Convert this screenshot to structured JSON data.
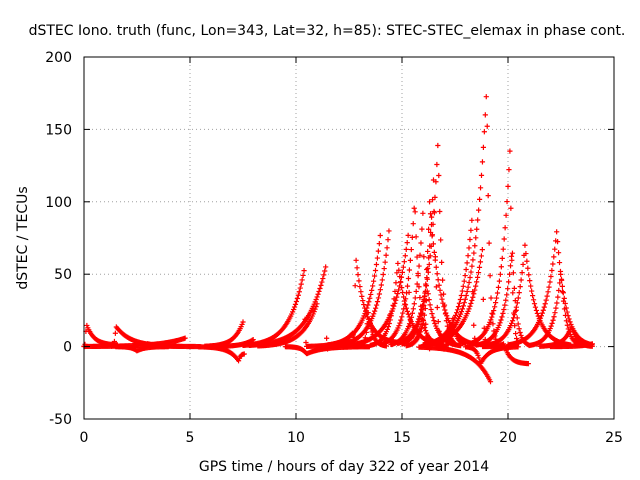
{
  "chart_data": {
    "type": "scatter",
    "title": "dSTEC Iono. truth (func, Lon=343, Lat=32, h=85): STEC-STEC_elemax in phase cont.",
    "xlabel": "GPS time / hours of day 322 of year 2014",
    "ylabel": "dSTEC  / TECUs",
    "xlim": [
      0,
      25
    ],
    "ylim": [
      -50,
      200
    ],
    "xticks": [
      0,
      5,
      10,
      15,
      20,
      25
    ],
    "yticks": [
      -50,
      0,
      50,
      100,
      150,
      200
    ],
    "grid": true,
    "legend": "none",
    "marker": "+",
    "color": "#ff0000",
    "arcs": [
      {
        "start": 0.0,
        "end": 1.6,
        "apex": 0.1,
        "peak": 16,
        "endval": 1
      },
      {
        "start": 0.0,
        "end": 4.8,
        "apex": 4.8,
        "peak": 6,
        "endval": 0
      },
      {
        "start": 1.3,
        "end": 4.5,
        "apex": 1.5,
        "peak": 14,
        "endval": 0
      },
      {
        "start": 1.5,
        "end": 4.0,
        "apex": 2.5,
        "peak": -3,
        "endval": 0
      },
      {
        "start": 3.0,
        "end": 5.5,
        "apex": 3.0,
        "peak": 2,
        "endval": 0
      },
      {
        "start": 5.4,
        "end": 7.6,
        "apex": 7.3,
        "peak": -10,
        "endval": -5
      },
      {
        "start": 5.7,
        "end": 7.5,
        "apex": 7.5,
        "peak": 17,
        "endval": 0
      },
      {
        "start": 6.0,
        "end": 8.0,
        "apex": 8.0,
        "peak": 5,
        "endval": 2
      },
      {
        "start": 7.5,
        "end": 10.5,
        "apex": 10.4,
        "peak": 54,
        "endval": 0
      },
      {
        "start": 7.8,
        "end": 11.5,
        "apex": 11.4,
        "peak": 55,
        "endval": -3
      },
      {
        "start": 8.2,
        "end": 11.0,
        "apex": 11.0,
        "peak": 30,
        "endval": 0
      },
      {
        "start": 9.5,
        "end": 13.5,
        "apex": 10.5,
        "peak": -5,
        "endval": 0
      },
      {
        "start": 10.5,
        "end": 12.8,
        "apex": 12.7,
        "peak": 10,
        "endval": 0
      },
      {
        "start": 11.5,
        "end": 14.0,
        "apex": 14.0,
        "peak": 80,
        "endval": 0
      },
      {
        "start": 12.0,
        "end": 14.5,
        "apex": 14.4,
        "peak": 82,
        "endval": -2
      },
      {
        "start": 12.7,
        "end": 14.8,
        "apex": 12.8,
        "peak": 64,
        "endval": 2
      },
      {
        "start": 13.0,
        "end": 14.3,
        "apex": 13.4,
        "peak": 24,
        "endval": 0
      },
      {
        "start": 12.5,
        "end": 15.5,
        "apex": 15.3,
        "peak": 78,
        "endval": 0
      },
      {
        "start": 13.5,
        "end": 17.0,
        "apex": 14.8,
        "peak": 58,
        "endval": 0
      },
      {
        "start": 14.0,
        "end": 16.5,
        "apex": 15.6,
        "peak": 102,
        "endval": 2
      },
      {
        "start": 14.5,
        "end": 16.3,
        "apex": 16.0,
        "peak": 96,
        "endval": -3
      },
      {
        "start": 14.8,
        "end": 17.5,
        "apex": 16.7,
        "peak": 142,
        "endval": 0
      },
      {
        "start": 15.0,
        "end": 17.0,
        "apex": 16.5,
        "peak": 120,
        "endval": -4
      },
      {
        "start": 15.2,
        "end": 17.8,
        "apex": 16.2,
        "peak": 40,
        "endval": 0
      },
      {
        "start": 15.4,
        "end": 18.5,
        "apex": 16.3,
        "peak": 100,
        "endval": 0
      },
      {
        "start": 15.8,
        "end": 19.2,
        "apex": 19.2,
        "peak": -25,
        "endval": -25
      },
      {
        "start": 16.0,
        "end": 18.5,
        "apex": 18.3,
        "peak": 88,
        "endval": 0
      },
      {
        "start": 16.5,
        "end": 19.5,
        "apex": 19.0,
        "peak": 180,
        "endval": 0
      },
      {
        "start": 16.0,
        "end": 19.0,
        "apex": 18.8,
        "peak": 68,
        "endval": 0
      },
      {
        "start": 17.0,
        "end": 18.0,
        "apex": 17.4,
        "peak": 20,
        "endval": 2
      },
      {
        "start": 18.0,
        "end": 20.5,
        "apex": 18.7,
        "peak": -12,
        "endval": 0
      },
      {
        "start": 18.8,
        "end": 21.0,
        "apex": 19.8,
        "peak": 2,
        "endval": -12
      },
      {
        "start": 18.2,
        "end": 20.5,
        "apex": 20.1,
        "peak": 138,
        "endval": 0
      },
      {
        "start": 18.5,
        "end": 21.0,
        "apex": 20.2,
        "peak": 68,
        "endval": 0
      },
      {
        "start": 19.0,
        "end": 23.0,
        "apex": 20.8,
        "peak": 70,
        "endval": 0
      },
      {
        "start": 20.0,
        "end": 24.0,
        "apex": 22.3,
        "peak": 80,
        "endval": 0
      },
      {
        "start": 21.0,
        "end": 23.5,
        "apex": 22.5,
        "peak": 52,
        "endval": 0
      },
      {
        "start": 21.5,
        "end": 24.0,
        "apex": 23.0,
        "peak": 14,
        "endval": 0
      },
      {
        "start": 22.0,
        "end": 24.0,
        "apex": 24.0,
        "peak": 2,
        "endval": 2
      }
    ]
  }
}
